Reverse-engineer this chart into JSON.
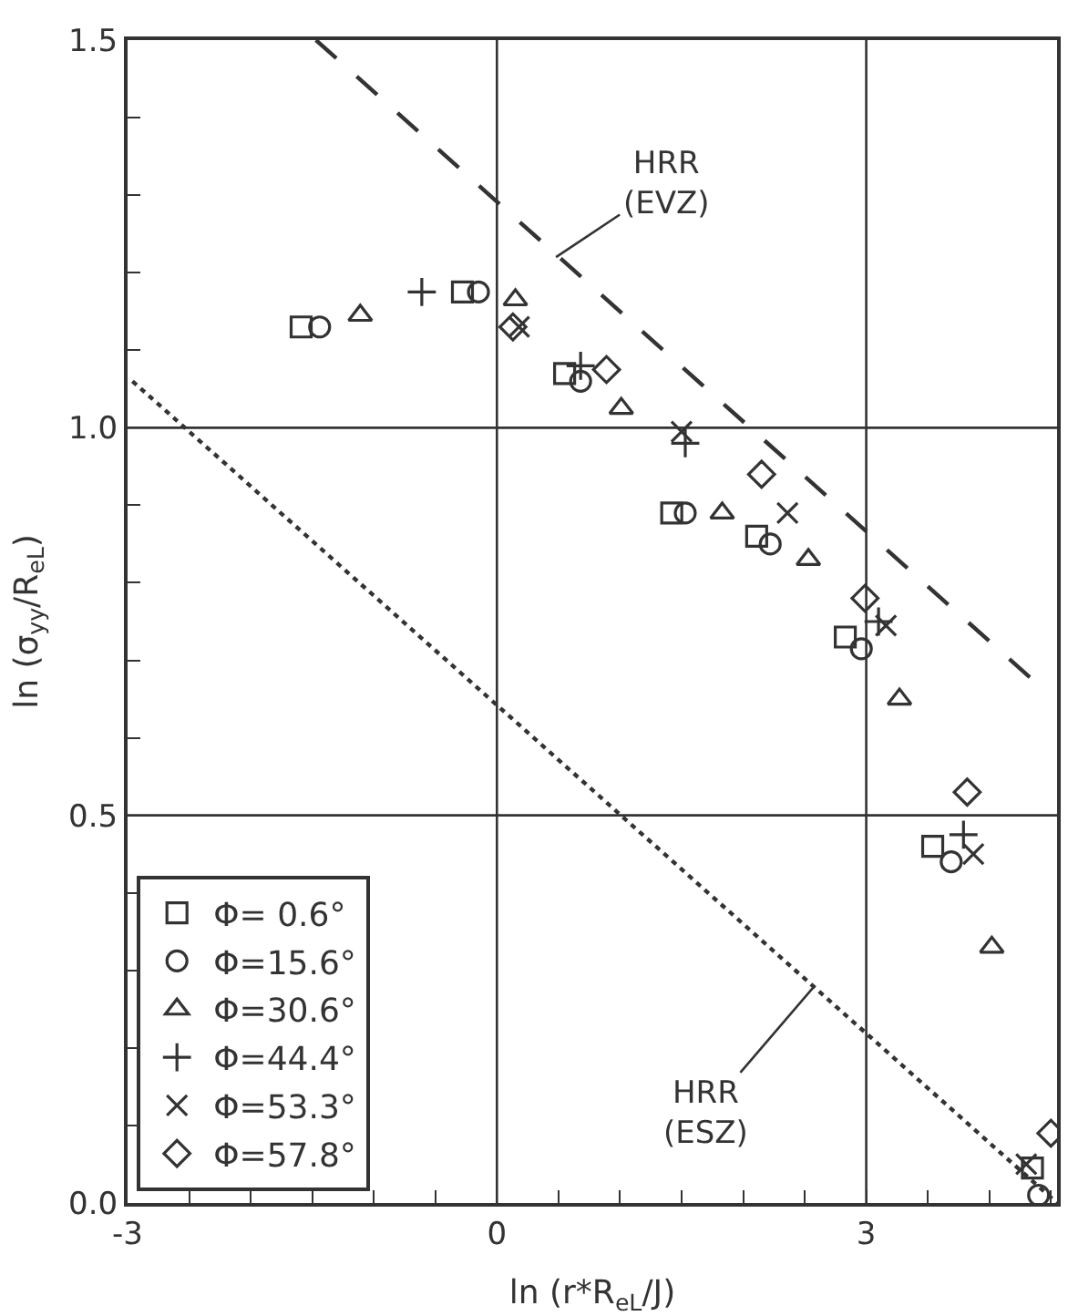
{
  "chart_data": {
    "type": "scatter",
    "xlabel": "ln (r*R$_{eL}$/J)",
    "ylabel": "ln (σ$_{yy}$/R$_{eL}$)",
    "xlim": [
      -3,
      4.55
    ],
    "ylim": [
      0,
      1.5
    ],
    "xticks": [
      -3,
      {
        "value": -2.5,
        "label": null
      },
      {
        "value": -2,
        "label": null
      },
      {
        "value": -1.5,
        "label": null
      },
      {
        "value": -1,
        "label": null
      },
      {
        "value": -0.5,
        "label": null
      },
      0,
      {
        "value": 0.5,
        "label": null
      },
      {
        "value": 1,
        "label": null
      },
      {
        "value": 1.5,
        "label": null
      },
      {
        "value": 2,
        "label": null
      },
      {
        "value": 2.5,
        "label": null
      },
      3,
      {
        "value": 3.5,
        "label": null
      },
      {
        "value": 4,
        "label": null
      },
      {
        "value": 4.5,
        "label": null
      }
    ],
    "yticks": [
      {
        "value": 0,
        "label": "0.0"
      },
      {
        "value": 0.1,
        "label": null
      },
      {
        "value": 0.2,
        "label": null
      },
      {
        "value": 0.3,
        "label": null
      },
      {
        "value": 0.4,
        "label": null
      },
      {
        "value": 0.5,
        "label": "0.5"
      },
      {
        "value": 0.6,
        "label": null
      },
      {
        "value": 0.7,
        "label": null
      },
      {
        "value": 0.8,
        "label": null
      },
      {
        "value": 0.9,
        "label": null
      },
      {
        "value": 1.0,
        "label": "1.0"
      },
      {
        "value": 1.1,
        "label": null
      },
      {
        "value": 1.2,
        "label": null
      },
      {
        "value": 1.3,
        "label": null
      },
      {
        "value": 1.4,
        "label": null
      },
      {
        "value": 1.5,
        "label": "1.5"
      }
    ],
    "grid": true,
    "legend": "bottom left",
    "series": [
      {
        "name": "Φ= 0.6°",
        "color": "#333333",
        "marker": "square",
        "x": [
          -1.59,
          -0.28,
          0.55,
          1.42,
          2.11,
          2.83,
          3.54,
          4.35
        ],
        "values": [
          1.13,
          1.175,
          1.07,
          0.89,
          0.86,
          0.73,
          0.46,
          0.045
        ]
      },
      {
        "name": "Φ=15.6°",
        "color": "#333333",
        "marker": "circle",
        "x": [
          -1.44,
          -0.15,
          0.68,
          1.53,
          2.22,
          2.96,
          3.69,
          4.4
        ],
        "values": [
          1.13,
          1.175,
          1.06,
          0.89,
          0.85,
          0.715,
          0.44,
          0.01
        ]
      },
      {
        "name": "Φ=30.6°",
        "color": "#333333",
        "marker": "triangle",
        "x": [
          -1.11,
          0.15,
          1.01,
          1.83,
          2.53,
          3.27,
          4.02
        ],
        "values": [
          1.145,
          1.165,
          1.025,
          0.89,
          0.83,
          0.65,
          0.33
        ]
      },
      {
        "name": "Φ=44.4°",
        "color": "#333333",
        "marker": "cross",
        "x": [
          -0.61,
          0.68,
          1.53,
          3.1,
          3.79
        ],
        "values": [
          1.175,
          1.08,
          0.98,
          0.75,
          0.475
        ]
      },
      {
        "name": "Φ=53.3°",
        "color": "#333333",
        "marker": "x",
        "x": [
          0.18,
          1.5,
          2.36,
          3.16,
          3.87,
          4.3
        ],
        "values": [
          1.13,
          0.995,
          0.89,
          0.745,
          0.45,
          0.05
        ]
      },
      {
        "name": "Φ=57.8°",
        "color": "#333333",
        "marker": "diamond",
        "x": [
          0.13,
          0.89,
          2.15,
          2.99,
          3.82,
          4.5
        ],
        "values": [
          1.13,
          1.075,
          0.94,
          0.78,
          0.53,
          0.09
        ]
      },
      {
        "type": "line",
        "color": "#333333",
        "line_style": "dashed",
        "marker": "none",
        "x": [
          -1.47,
          4.35
        ],
        "values": [
          1.5,
          0.675
        ]
      },
      {
        "type": "line",
        "color": "#333333",
        "line_style": "dotted",
        "marker": "none",
        "x": [
          -2.96,
          4.55
        ],
        "values": [
          1.06,
          0.0
        ]
      }
    ],
    "annotations": [
      {
        "text": "HRR\n(EVZ)",
        "x": 0.48,
        "y": 1.22
      },
      {
        "text": "HRR\n(ESZ)",
        "x": 2.58,
        "y": 0.28
      }
    ]
  }
}
